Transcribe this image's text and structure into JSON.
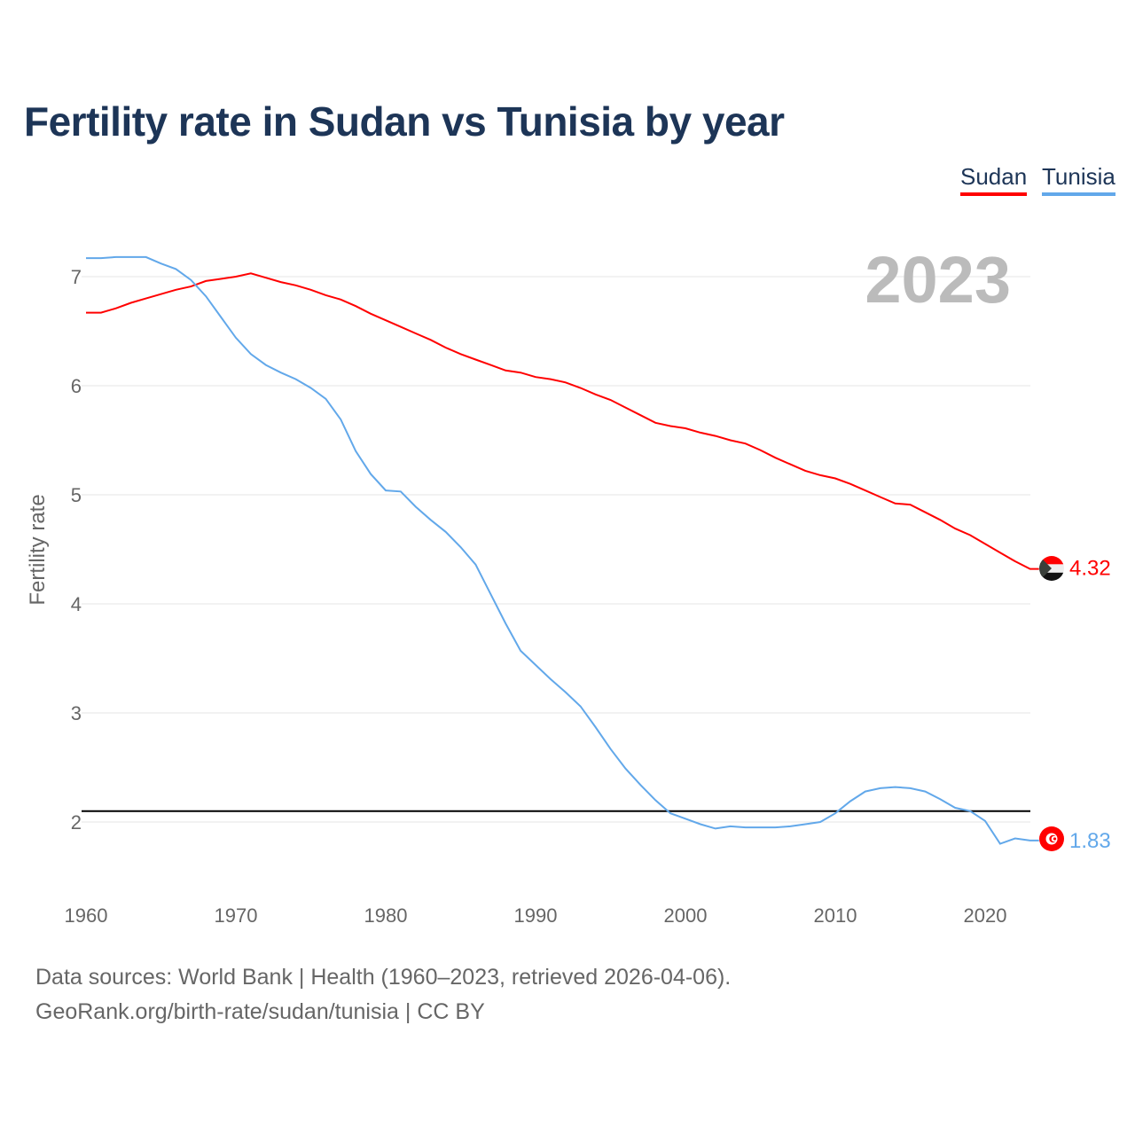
{
  "title": "Fertility rate in Sudan vs Tunisia by year",
  "legend": [
    {
      "label": "Sudan",
      "color": "#ff0000"
    },
    {
      "label": "Tunisia",
      "color": "#62a8ea"
    }
  ],
  "footer": {
    "line1": "Data sources: World Bank | Health (1960–2023, retrieved 2026-04-06).",
    "line2": "GeoRank.org/birth-rate/sudan/tunisia | CC BY"
  },
  "chart_data": {
    "type": "line",
    "title": "Fertility rate in Sudan vs Tunisia by year",
    "ylabel": "Fertility rate",
    "xlabel": "",
    "year_label": "2023",
    "xlim": [
      1960,
      2023
    ],
    "ylim": [
      1.4,
      7.3
    ],
    "xticks": [
      1960,
      1970,
      1980,
      1990,
      2000,
      2010,
      2020
    ],
    "yticks": [
      2,
      3,
      4,
      5,
      6,
      7
    ],
    "grid": true,
    "reference_line": 2.1,
    "x_start": 1960,
    "series": [
      {
        "name": "Sudan",
        "color": "#ff0000",
        "end_label": "4.32",
        "flag": "sudan-flag",
        "values": [
          6.67,
          6.67,
          6.71,
          6.76,
          6.8,
          6.84,
          6.88,
          6.91,
          6.96,
          6.98,
          7.0,
          7.03,
          6.99,
          6.95,
          6.92,
          6.88,
          6.83,
          6.79,
          6.73,
          6.66,
          6.6,
          6.54,
          6.48,
          6.42,
          6.35,
          6.29,
          6.24,
          6.19,
          6.14,
          6.12,
          6.08,
          6.06,
          6.03,
          5.98,
          5.92,
          5.87,
          5.8,
          5.73,
          5.66,
          5.63,
          5.61,
          5.57,
          5.54,
          5.5,
          5.47,
          5.41,
          5.34,
          5.28,
          5.22,
          5.18,
          5.15,
          5.1,
          5.04,
          4.98,
          4.92,
          4.91,
          4.84,
          4.77,
          4.69,
          4.63,
          4.55,
          4.47,
          4.39,
          4.32
        ]
      },
      {
        "name": "Tunisia",
        "color": "#62a8ea",
        "end_label": "1.83",
        "flag": "tunisia-flag",
        "values": [
          7.17,
          7.17,
          7.18,
          7.18,
          7.18,
          7.12,
          7.07,
          6.97,
          6.82,
          6.63,
          6.44,
          6.29,
          6.19,
          6.12,
          6.06,
          5.98,
          5.88,
          5.69,
          5.4,
          5.19,
          5.04,
          5.03,
          4.89,
          4.77,
          4.66,
          4.52,
          4.36,
          4.09,
          3.82,
          3.57,
          3.44,
          3.31,
          3.19,
          3.06,
          2.87,
          2.67,
          2.49,
          2.34,
          2.2,
          2.08,
          2.03,
          1.98,
          1.94,
          1.96,
          1.95,
          1.95,
          1.95,
          1.96,
          1.98,
          2.0,
          2.08,
          2.19,
          2.28,
          2.31,
          2.32,
          2.31,
          2.28,
          2.21,
          2.13,
          2.1,
          2.01,
          1.8,
          1.85,
          1.83
        ]
      }
    ]
  }
}
